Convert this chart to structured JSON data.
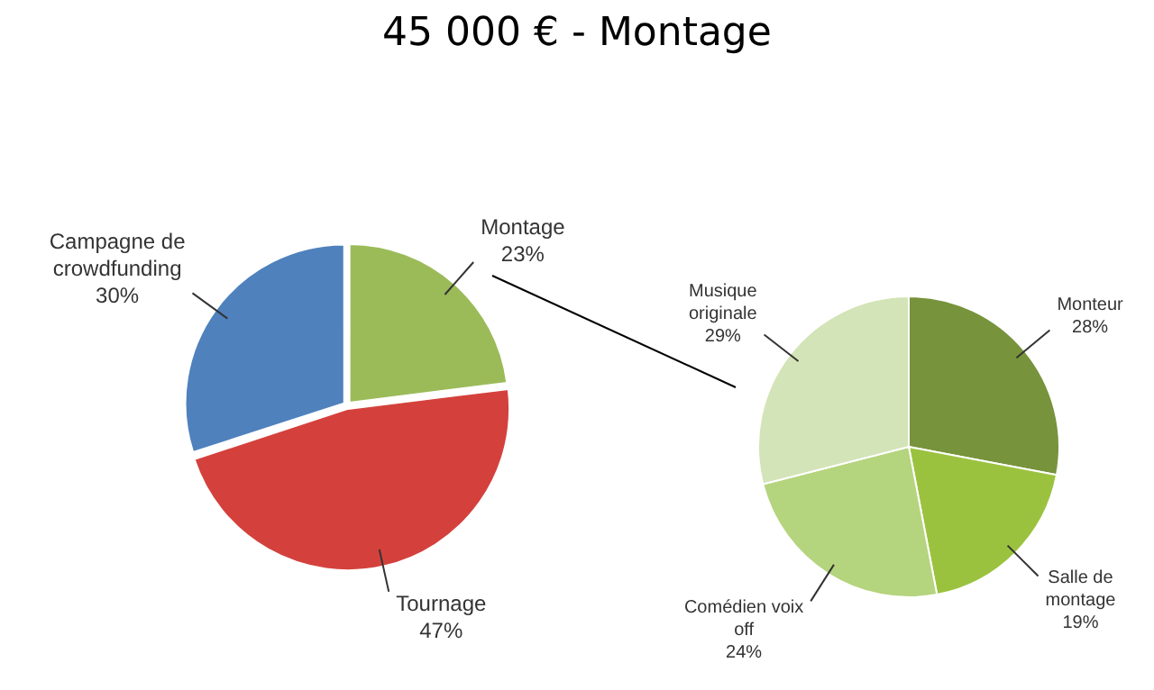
{
  "chart_data": [
    {
      "type": "pie",
      "title": "45 000 € - Montage",
      "categories": [
        "Montage",
        "Tournage",
        "Campagne de crowdfunding"
      ],
      "values": [
        23,
        47,
        30
      ],
      "value_labels": [
        "23%",
        "47%",
        "30%"
      ],
      "colors": [
        "#9bbb59",
        "#d4413c",
        "#4f81bd"
      ]
    },
    {
      "type": "pie",
      "categories": [
        "Monteur",
        "Salle de montage",
        "Comédien voix off",
        "Musique originale"
      ],
      "values": [
        28,
        19,
        24,
        29
      ],
      "value_labels": [
        "28%",
        "19%",
        "24%",
        "29%"
      ],
      "colors": [
        "#77933c",
        "#9bc23f",
        "#b5d47e",
        "#d3e4b8"
      ]
    }
  ]
}
